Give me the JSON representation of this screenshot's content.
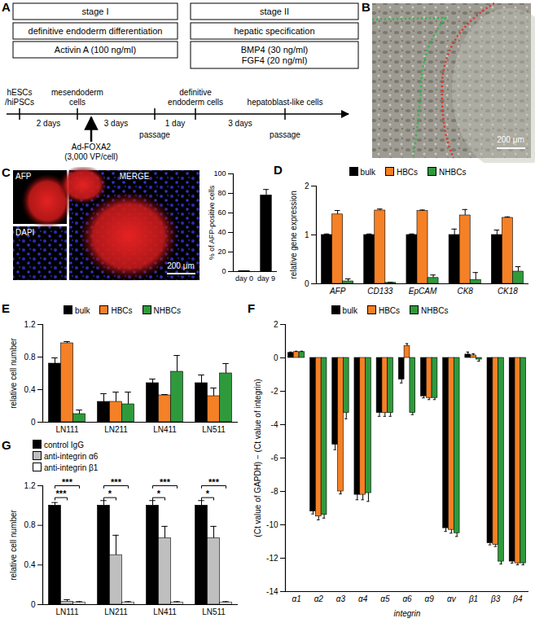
{
  "diagram": {
    "label": "A",
    "stage_boxes": [
      {
        "title": "stage I",
        "rows": [
          [
            "definitive endoderm differentiation"
          ],
          [
            "Activin A (100 ng/ml)"
          ]
        ]
      },
      {
        "title": "stage II",
        "rows": [
          [
            "hepatic specification"
          ],
          [
            "BMP4 (30 ng/ml)",
            "FGF4 (20 ng/ml)"
          ]
        ]
      }
    ],
    "timeline": {
      "points": [
        {
          "text": [
            "hESCs",
            "/hiPSCs"
          ]
        },
        {
          "text": [
            "mesendoderm",
            "cells"
          ],
          "treatment": [
            "Ad-FOXA2",
            "(3,000 VP/cell)"
          ]
        },
        {
          "below": "passage"
        },
        {
          "text": [
            "definitive",
            "endoderm cells"
          ]
        },
        {
          "text": [
            "hepatoblast-like cells"
          ],
          "below": "passage"
        }
      ],
      "intervals": [
        "2 days",
        "3 days",
        "1 day",
        "3 days"
      ]
    }
  },
  "images": [
    {
      "label": "B",
      "scale_bar": "200 μm"
    },
    {
      "label": "C",
      "panels": [
        "AFP",
        "DAPI",
        "MERGE"
      ],
      "scale_bar": "200 μm"
    }
  ],
  "chart_data": [
    {
      "type": "bar",
      "categories": [
        "day 0",
        "day 9"
      ],
      "values": [
        0.5,
        78
      ],
      "errors": [
        0.3,
        6
      ],
      "color": "#000000",
      "y_label": "% of AFP-positive cells",
      "ylim": [
        0,
        100
      ],
      "yticks": [
        0,
        20,
        40,
        60,
        80,
        100
      ]
    },
    {
      "type": "bar",
      "annotations": [
        "D"
      ],
      "categories": [
        "AFP",
        "CD133",
        "EpCAM",
        "CK8",
        "CK18"
      ],
      "series": [
        {
          "name": "bulk",
          "color": "#000000",
          "values": [
            1,
            1,
            1,
            1,
            1
          ],
          "errors": [
            0.02,
            0.02,
            0.02,
            0.12,
            0.1
          ]
        },
        {
          "name": "HBCs",
          "color": "#f58025",
          "values": [
            1.42,
            1.5,
            1.49,
            1.4,
            1.35
          ],
          "errors": [
            0.08,
            0.03,
            0.02,
            0.12,
            0.02
          ]
        },
        {
          "name": "NHBCs",
          "color": "#2f9a3c",
          "values": [
            0.05,
            0.02,
            0.12,
            0.08,
            0.25
          ],
          "errors": [
            0.05,
            0.01,
            0.06,
            0.15,
            0.1
          ]
        }
      ],
      "y_label": "relative gene expression",
      "ylim": [
        0,
        2
      ],
      "yticks": [
        0,
        1,
        2
      ],
      "legend": "top"
    },
    {
      "type": "bar",
      "annotations": [
        "E"
      ],
      "categories": [
        "LN111",
        "LN211",
        "LN411",
        "LN511"
      ],
      "series": [
        {
          "name": "bulk",
          "color": "#000000",
          "values": [
            0.72,
            0.25,
            0.48,
            0.48
          ],
          "errors": [
            0.07,
            0.1,
            0.05,
            0.1
          ]
        },
        {
          "name": "HBCs",
          "color": "#f58025",
          "values": [
            0.97,
            0.25,
            0.33,
            0.32
          ],
          "errors": [
            0.02,
            0.12,
            0.01,
            0.1
          ]
        },
        {
          "name": "NHBCs",
          "color": "#2f9a3c",
          "values": [
            0.1,
            0.22,
            0.62,
            0.6
          ],
          "errors": [
            0.05,
            0.15,
            0.2,
            0.12
          ]
        }
      ],
      "y_label": "relative cell number",
      "ylim": [
        0,
        1.2
      ],
      "yticks": [
        0,
        0.4,
        0.8,
        1.2
      ],
      "legend": "top"
    },
    {
      "type": "bar",
      "annotations": [
        "F"
      ],
      "categories": [
        "α1",
        "α2",
        "α3",
        "α4",
        "α5",
        "α6",
        "α9",
        "αv",
        "β1",
        "β3",
        "β4"
      ],
      "series": [
        {
          "name": "bulk",
          "color": "#000000",
          "values": [
            0.3,
            -9.2,
            -5.2,
            -8.2,
            -3.3,
            -1.3,
            -2.3,
            -10.2,
            0.2,
            -11.1,
            -12.2
          ],
          "errors": [
            0.05,
            0.15,
            0.3,
            0.3,
            0.2,
            0.2,
            0.1,
            0.2,
            0.15,
            0.1,
            0.1
          ]
        },
        {
          "name": "HBCs",
          "color": "#f58025",
          "values": [
            0.35,
            -9.5,
            -8.0,
            -8.2,
            -3.3,
            0.7,
            -2.4,
            -10.3,
            0.15,
            -11.2,
            -12.3
          ],
          "errors": [
            0.05,
            0.2,
            0.15,
            0.3,
            0.2,
            0.15,
            0.1,
            0.2,
            0.1,
            0.1,
            0.1
          ]
        },
        {
          "name": "NHBCs",
          "color": "#2f9a3c",
          "values": [
            0.35,
            -9.4,
            -3.3,
            -8.1,
            -3.3,
            -3.3,
            -2.4,
            -10.5,
            -0.1,
            -12.2,
            -12.3
          ],
          "errors": [
            0.05,
            0.2,
            0.35,
            0.5,
            0.2,
            0.1,
            0.1,
            0.2,
            0.1,
            0.15,
            0.1
          ]
        }
      ],
      "x_label": "integrin",
      "y_label": "(Ct value of GAPDH) − (Ct value of integrin)",
      "ylim": [
        -14,
        2
      ],
      "yticks": [
        -14,
        -12,
        -10,
        -8,
        -6,
        -4,
        -2,
        0,
        2
      ],
      "legend": "top"
    },
    {
      "type": "bar",
      "annotations": [
        "G"
      ],
      "categories": [
        "LN111",
        "LN211",
        "LN411",
        "LN511"
      ],
      "series": [
        {
          "name": "control IgG",
          "color": "#000000",
          "values": [
            1,
            1,
            1,
            1
          ],
          "errors": [
            0.03,
            0.05,
            0.05,
            0.05
          ]
        },
        {
          "name": "anti-integrin α6",
          "color": "#bfbfbf",
          "values": [
            0.03,
            0.5,
            0.67,
            0.67
          ],
          "errors": [
            0.02,
            0.2,
            0.12,
            0.12
          ]
        },
        {
          "name": "anti-integrin β1",
          "color": "#ffffff",
          "values": [
            0.02,
            0.02,
            0.02,
            0.02
          ],
          "errors": [
            0.01,
            0.01,
            0.01,
            0.01
          ]
        }
      ],
      "significance": [
        {
          "category": "LN111",
          "from": "control IgG",
          "to": "anti-integrin α6",
          "label": "***"
        },
        {
          "category": "LN111",
          "from": "control IgG",
          "to": "anti-integrin β1",
          "label": "***"
        },
        {
          "category": "LN211",
          "from": "control IgG",
          "to": "anti-integrin α6",
          "label": "*"
        },
        {
          "category": "LN211",
          "from": "control IgG",
          "to": "anti-integrin β1",
          "label": "***"
        },
        {
          "category": "LN411",
          "from": "control IgG",
          "to": "anti-integrin α6",
          "label": "*"
        },
        {
          "category": "LN411",
          "from": "control IgG",
          "to": "anti-integrin β1",
          "label": "***"
        },
        {
          "category": "LN511",
          "from": "control IgG",
          "to": "anti-integrin α6",
          "label": "*"
        },
        {
          "category": "LN511",
          "from": "control IgG",
          "to": "anti-integrin β1",
          "label": "***"
        }
      ],
      "y_label": "relative cell number",
      "ylim": [
        0,
        1.2
      ],
      "yticks": [
        0,
        0.4,
        0.8,
        1.2
      ],
      "legend": "top left"
    }
  ]
}
